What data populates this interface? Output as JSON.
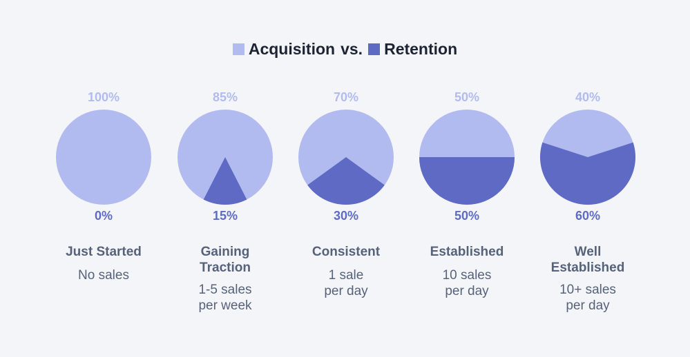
{
  "legend": {
    "acquisition_label": "Acquisition",
    "vs_label": "vs.",
    "retention_label": "Retention",
    "acquisition_color": "#b1bbf0",
    "retention_color": "#5e6ac4"
  },
  "columns": [
    {
      "top": "100%",
      "bottom": "0%",
      "stage": "Just Started",
      "desc": [
        "No sales"
      ]
    },
    {
      "top": "85%",
      "bottom": "15%",
      "stage": "Gaining Traction",
      "desc": [
        "1-5 sales",
        "per week"
      ]
    },
    {
      "top": "70%",
      "bottom": "30%",
      "stage": "Consistent",
      "desc": [
        "1 sale",
        "per day"
      ]
    },
    {
      "top": "50%",
      "bottom": "50%",
      "stage": "Established",
      "desc": [
        "10 sales",
        "per day"
      ]
    },
    {
      "top": "40%",
      "bottom": "60%",
      "stage": "Well Established",
      "desc": [
        "10+ sales",
        "per day"
      ]
    }
  ],
  "chart_data": {
    "type": "pie",
    "title": "Acquisition vs. Retention",
    "categories": [
      "Just Started",
      "Gaining Traction",
      "Consistent",
      "Established",
      "Well Established"
    ],
    "series": [
      {
        "name": "Acquisition",
        "values": [
          100,
          85,
          70,
          50,
          40
        ]
      },
      {
        "name": "Retention",
        "values": [
          0,
          15,
          30,
          50,
          60
        ]
      }
    ],
    "legend_position": "top-center"
  }
}
